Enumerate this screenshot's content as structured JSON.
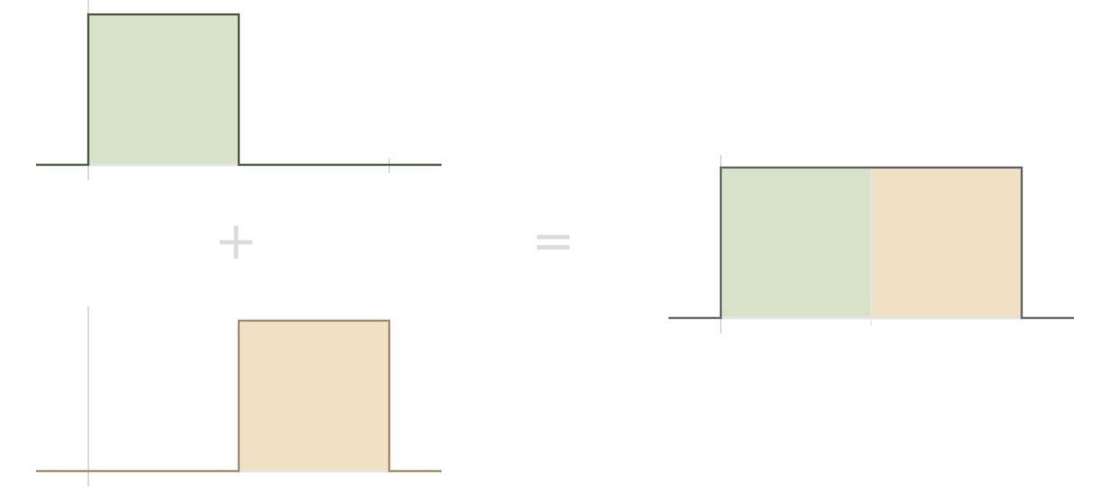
{
  "operators": {
    "plus": "+",
    "equals": "="
  },
  "colors": {
    "green_fill": "#d8e2c8",
    "green_stroke": "#57614a",
    "tan_fill": "#f0e0c4",
    "tan_stroke": "#a59270",
    "sum_stroke": "#6b6b6b",
    "tick": "#dddddd",
    "operator": "#dcdcdc"
  },
  "pulses": {
    "first": {
      "start": 0,
      "end": 1,
      "height": 1
    },
    "second": {
      "start": 1,
      "end": 2,
      "height": 1
    },
    "sum": {
      "segments": [
        {
          "start": 0,
          "end": 1,
          "height": 1,
          "color": "green"
        },
        {
          "start": 1,
          "end": 2,
          "height": 1,
          "color": "tan"
        }
      ]
    }
  }
}
